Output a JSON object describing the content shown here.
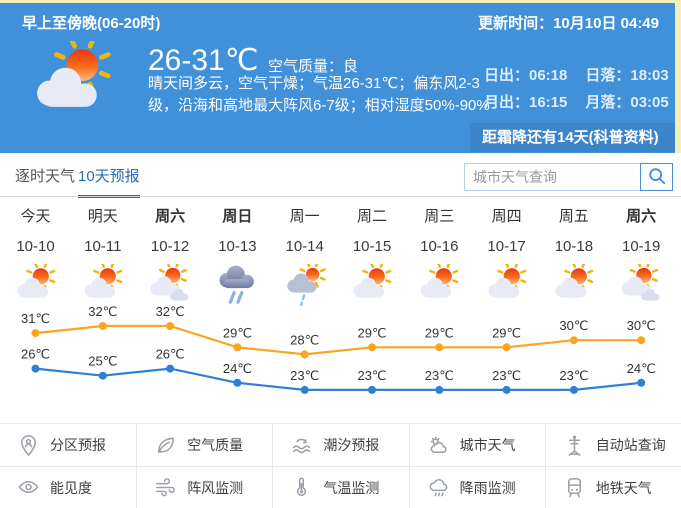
{
  "colors": {
    "header_bg": "#4190da",
    "accent_blue": "#2a6cb3",
    "chart_high": "#faa51e",
    "chart_low": "#2e7fd6",
    "frame_cream": "#f5f0bb"
  },
  "header": {
    "period_label": "早上至傍晚(06-20时)",
    "update_label": "更新时间：10月10日 04:49",
    "temp_range": "26-31℃",
    "air_quality": "空气质量：良",
    "desc_line1": "晴天间多云，空气干燥；气温26-31℃；偏东风2-3",
    "desc_line2": "级，沿海和高地最大阵风6-7级；相对湿度50%-90%",
    "sunrise": "日出：06:18",
    "sunset": "日落：18:03",
    "moonrise": "月出：16:15",
    "moonset": "月落：03:05",
    "frost_note": "距霜降还有14天(科普资料)",
    "icon": "sun-cloud"
  },
  "tabs": [
    {
      "label": "逐时天气",
      "active": false
    },
    {
      "label": "10天预报",
      "active": true
    }
  ],
  "search": {
    "placeholder": "城市天气查询",
    "icon": "search"
  },
  "forecast": {
    "unit": "℃",
    "days": [
      {
        "name": "今天",
        "date": "10-10",
        "bold": false,
        "icon": "sun-cloud",
        "high": 31,
        "low": 26
      },
      {
        "name": "明天",
        "date": "10-11",
        "bold": false,
        "icon": "sun-cloud",
        "high": 32,
        "low": 25
      },
      {
        "name": "周六",
        "date": "10-12",
        "bold": true,
        "icon": "sun-clouds",
        "high": 32,
        "low": 26
      },
      {
        "name": "周日",
        "date": "10-13",
        "bold": true,
        "icon": "rain",
        "high": 29,
        "low": 24
      },
      {
        "name": "周一",
        "date": "10-14",
        "bold": false,
        "icon": "sun-shower",
        "high": 28,
        "low": 23
      },
      {
        "name": "周二",
        "date": "10-15",
        "bold": false,
        "icon": "sun-cloud",
        "high": 29,
        "low": 23
      },
      {
        "name": "周三",
        "date": "10-16",
        "bold": false,
        "icon": "sun-cloud",
        "high": 29,
        "low": 23
      },
      {
        "name": "周四",
        "date": "10-17",
        "bold": false,
        "icon": "sun-cloud",
        "high": 29,
        "low": 23
      },
      {
        "name": "周五",
        "date": "10-18",
        "bold": false,
        "icon": "sun-cloud",
        "high": 30,
        "low": 23
      },
      {
        "name": "周六",
        "date": "10-19",
        "bold": true,
        "icon": "sun-clouds",
        "high": 30,
        "low": 24
      }
    ]
  },
  "chart_data": {
    "type": "line",
    "categories": [
      "10-10",
      "10-11",
      "10-12",
      "10-13",
      "10-14",
      "10-15",
      "10-16",
      "10-17",
      "10-18",
      "10-19"
    ],
    "series": [
      {
        "name": "high-temp",
        "color": "#faa51e",
        "values": [
          31,
          32,
          32,
          29,
          28,
          29,
          29,
          29,
          30,
          30
        ]
      },
      {
        "name": "low-temp",
        "color": "#2e7fd6",
        "values": [
          26,
          25,
          26,
          24,
          23,
          23,
          23,
          23,
          23,
          24
        ]
      }
    ],
    "unit": "℃",
    "ylim": [
      22,
      33
    ],
    "grid": false,
    "legend": "none"
  },
  "menu": {
    "items": [
      {
        "label": "分区预报",
        "icon": "zone-map"
      },
      {
        "label": "空气质量",
        "icon": "leaf"
      },
      {
        "label": "潮汐预报",
        "icon": "tide"
      },
      {
        "label": "城市天气",
        "icon": "city-weather"
      },
      {
        "label": "自动站查询",
        "icon": "station"
      },
      {
        "label": "能见度",
        "icon": "eye"
      },
      {
        "label": "阵风监测",
        "icon": "wind"
      },
      {
        "label": "气温监测",
        "icon": "thermometer"
      },
      {
        "label": "降雨监测",
        "icon": "rain-monitor"
      },
      {
        "label": "地铁天气",
        "icon": "metro"
      }
    ]
  }
}
